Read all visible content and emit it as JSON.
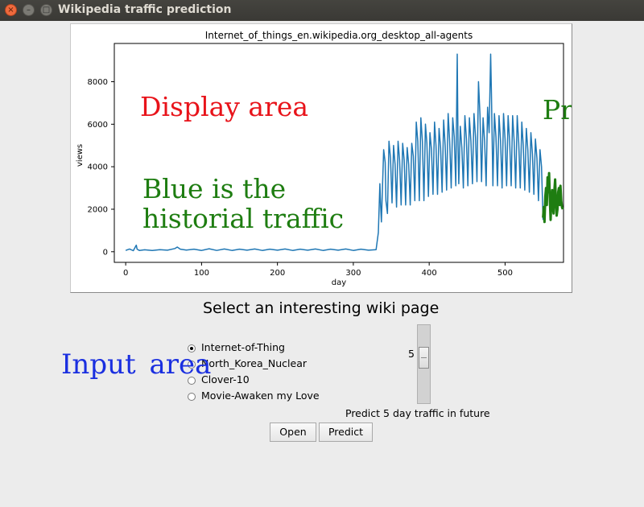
{
  "window": {
    "title": "Wikipedia traffic prediction",
    "controls": {
      "close": "×",
      "minimize": "–",
      "maximize": "□"
    }
  },
  "annotations": {
    "display": "Display  area",
    "predict": "Predict",
    "blue_line1": "Blue  is  the",
    "blue_line2": "historial  traffic",
    "input": "Input  area"
  },
  "chart_data": {
    "type": "line",
    "title": "Internet_of_things_en.wikipedia.org_desktop_all-agents",
    "xlabel": "day",
    "ylabel": "views",
    "xlim": [
      -15,
      577
    ],
    "ylim": [
      -500,
      9800
    ],
    "xticks": [
      0,
      100,
      200,
      300,
      400,
      500
    ],
    "yticks": [
      0,
      2000,
      4000,
      6000,
      8000
    ],
    "grid": false,
    "legend": "none",
    "series": [
      {
        "role": "history",
        "color": "#1f77b4",
        "points": [
          [
            0,
            60
          ],
          [
            5,
            130
          ],
          [
            10,
            50
          ],
          [
            14,
            310
          ],
          [
            15,
            120
          ],
          [
            18,
            60
          ],
          [
            25,
            90
          ],
          [
            35,
            60
          ],
          [
            45,
            100
          ],
          [
            55,
            70
          ],
          [
            65,
            150
          ],
          [
            68,
            220
          ],
          [
            72,
            120
          ],
          [
            80,
            80
          ],
          [
            90,
            120
          ],
          [
            100,
            60
          ],
          [
            110,
            140
          ],
          [
            120,
            60
          ],
          [
            130,
            130
          ],
          [
            140,
            60
          ],
          [
            150,
            120
          ],
          [
            160,
            70
          ],
          [
            170,
            130
          ],
          [
            180,
            60
          ],
          [
            190,
            120
          ],
          [
            200,
            70
          ],
          [
            210,
            130
          ],
          [
            220,
            60
          ],
          [
            230,
            120
          ],
          [
            240,
            70
          ],
          [
            250,
            130
          ],
          [
            260,
            60
          ],
          [
            270,
            120
          ],
          [
            280,
            70
          ],
          [
            290,
            130
          ],
          [
            300,
            60
          ],
          [
            310,
            120
          ],
          [
            320,
            70
          ],
          [
            330,
            100
          ],
          [
            333,
            900
          ],
          [
            335,
            3200
          ],
          [
            336,
            2200
          ],
          [
            337,
            1400
          ],
          [
            340,
            4800
          ],
          [
            342,
            4200
          ],
          [
            343,
            2400
          ],
          [
            345,
            1800
          ],
          [
            347,
            5200
          ],
          [
            349,
            4400
          ],
          [
            351,
            2300
          ],
          [
            353,
            5000
          ],
          [
            355,
            4100
          ],
          [
            357,
            2100
          ],
          [
            359,
            5200
          ],
          [
            361,
            4300
          ],
          [
            363,
            2200
          ],
          [
            365,
            5100
          ],
          [
            367,
            4300
          ],
          [
            369,
            2200
          ],
          [
            371,
            4900
          ],
          [
            373,
            4100
          ],
          [
            375,
            2200
          ],
          [
            377,
            5100
          ],
          [
            379,
            4500
          ],
          [
            381,
            2400
          ],
          [
            383,
            6100
          ],
          [
            385,
            5200
          ],
          [
            387,
            2400
          ],
          [
            389,
            6300
          ],
          [
            391,
            5200
          ],
          [
            393,
            2400
          ],
          [
            395,
            6000
          ],
          [
            397,
            5100
          ],
          [
            399,
            2600
          ],
          [
            401,
            5600
          ],
          [
            403,
            4800
          ],
          [
            405,
            2700
          ],
          [
            407,
            6100
          ],
          [
            409,
            5000
          ],
          [
            411,
            2700
          ],
          [
            413,
            5800
          ],
          [
            415,
            4900
          ],
          [
            417,
            2800
          ],
          [
            419,
            6200
          ],
          [
            421,
            5000
          ],
          [
            423,
            2900
          ],
          [
            425,
            6500
          ],
          [
            427,
            5200
          ],
          [
            429,
            3000
          ],
          [
            431,
            6300
          ],
          [
            433,
            5400
          ],
          [
            435,
            3100
          ],
          [
            437,
            9300
          ],
          [
            438,
            5000
          ],
          [
            439,
            3200
          ],
          [
            441,
            5900
          ],
          [
            443,
            4900
          ],
          [
            445,
            3000
          ],
          [
            447,
            6400
          ],
          [
            449,
            5300
          ],
          [
            451,
            3100
          ],
          [
            453,
            6300
          ],
          [
            455,
            5200
          ],
          [
            457,
            3200
          ],
          [
            459,
            6500
          ],
          [
            461,
            5400
          ],
          [
            463,
            3300
          ],
          [
            465,
            8000
          ],
          [
            467,
            6400
          ],
          [
            469,
            3300
          ],
          [
            471,
            6300
          ],
          [
            473,
            5200
          ],
          [
            475,
            3100
          ],
          [
            477,
            6800
          ],
          [
            479,
            5600
          ],
          [
            481,
            9300
          ],
          [
            482,
            7400
          ],
          [
            484,
            3100
          ],
          [
            486,
            6500
          ],
          [
            488,
            5400
          ],
          [
            490,
            3100
          ],
          [
            492,
            6400
          ],
          [
            494,
            5200
          ],
          [
            496,
            3000
          ],
          [
            498,
            6500
          ],
          [
            500,
            5300
          ],
          [
            502,
            3100
          ],
          [
            504,
            6400
          ],
          [
            506,
            5200
          ],
          [
            508,
            3100
          ],
          [
            510,
            6400
          ],
          [
            512,
            5200
          ],
          [
            514,
            3000
          ],
          [
            516,
            6400
          ],
          [
            518,
            5100
          ],
          [
            520,
            3000
          ],
          [
            522,
            6100
          ],
          [
            524,
            5000
          ],
          [
            526,
            2900
          ],
          [
            528,
            5800
          ],
          [
            530,
            4800
          ],
          [
            532,
            2800
          ],
          [
            534,
            5600
          ],
          [
            536,
            4600
          ],
          [
            538,
            2700
          ],
          [
            540,
            5300
          ],
          [
            542,
            4400
          ],
          [
            544,
            2400
          ],
          [
            546,
            4800
          ],
          [
            548,
            4000
          ],
          [
            550,
            1500
          ]
        ]
      },
      {
        "role": "prediction",
        "color": "#1e7d11",
        "points": [
          [
            550,
            1600
          ],
          [
            551,
            2100
          ],
          [
            552,
            1400
          ],
          [
            553,
            2600
          ],
          [
            554,
            3000
          ],
          [
            555,
            2200
          ],
          [
            556,
            3500
          ],
          [
            557,
            2800
          ],
          [
            558,
            3700
          ],
          [
            559,
            2500
          ],
          [
            560,
            1500
          ],
          [
            561,
            2400
          ],
          [
            562,
            2900
          ],
          [
            563,
            2100
          ],
          [
            564,
            1800
          ],
          [
            565,
            2900
          ],
          [
            566,
            3400
          ],
          [
            567,
            2300
          ],
          [
            568,
            1700
          ],
          [
            569,
            2000
          ],
          [
            570,
            2800
          ],
          [
            571,
            3000
          ],
          [
            572,
            2200
          ],
          [
            573,
            3100
          ],
          [
            574,
            2400
          ],
          [
            575,
            2100
          ],
          [
            576,
            2000
          ]
        ]
      }
    ]
  },
  "main": {
    "heading": "Select an interesting wiki page",
    "radios": [
      {
        "label": "Internet-of-Thing",
        "selected": true
      },
      {
        "label": "North_Korea_Nuclear",
        "selected": false
      },
      {
        "label": "Clover-10",
        "selected": false
      },
      {
        "label": "Movie-Awaken my Love",
        "selected": false
      }
    ],
    "slider": {
      "value": "5",
      "min": 1,
      "max": 30
    },
    "slider_caption": "Predict 5 day traffic in future",
    "buttons": {
      "open": "Open",
      "predict": "Predict"
    }
  }
}
